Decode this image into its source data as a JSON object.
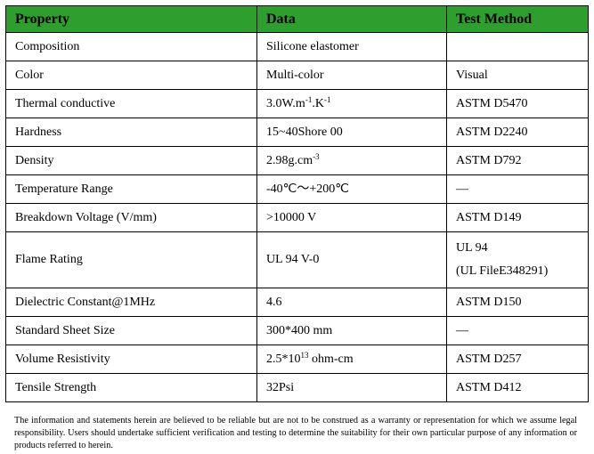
{
  "headers": [
    "Property",
    "Data",
    "Test Method"
  ],
  "rows": [
    {
      "property": "Composition",
      "data": "Silicone elastomer",
      "method": ""
    },
    {
      "property": "Color",
      "data": "Multi-color",
      "method": "Visual"
    },
    {
      "property": "Thermal conductive",
      "data_parts": [
        "3.0W.m",
        "-1",
        ".K",
        "-1"
      ],
      "method": "ASTM D5470"
    },
    {
      "property": "Hardness",
      "data": "15~40Shore 00",
      "method": "ASTM D2240"
    },
    {
      "property": "Density",
      "data_parts": [
        "2.98g.cm",
        "-3"
      ],
      "method": "ASTM D792"
    },
    {
      "property": "Temperature Range",
      "data": "-40℃～+200℃",
      "method": "—"
    },
    {
      "property": "Breakdown Voltage (V/mm)",
      "data": ">10000 V",
      "method": "ASTM D149"
    },
    {
      "property": "Flame Rating",
      "data": "UL 94 V-0",
      "method_lines": [
        "UL 94",
        "(UL FileE348291)"
      ]
    },
    {
      "property": "Dielectric Constant@1MHz",
      "data": "4.6",
      "method": "ASTM D150"
    },
    {
      "property": "Standard Sheet Size",
      "data": "300*400 mm",
      "method": "—"
    },
    {
      "property": "Volume Resistivity",
      "data_parts": [
        "2.5*10",
        "13",
        " ohm-cm"
      ],
      "method": "ASTM D257"
    },
    {
      "property": "Tensile Strength",
      "data": "32Psi",
      "method": "ASTM D412"
    }
  ],
  "note": "The information and statements herein are believed to be reliable but are not to be construed as a warranty or representation for which we assume legal responsibility. Users should undertake sufficient verification and testing to determine the suitability for their own particular purpose of any information or products referred to herein.",
  "colors": {
    "header_bg": "#2e9e2e",
    "border": "#000000"
  }
}
